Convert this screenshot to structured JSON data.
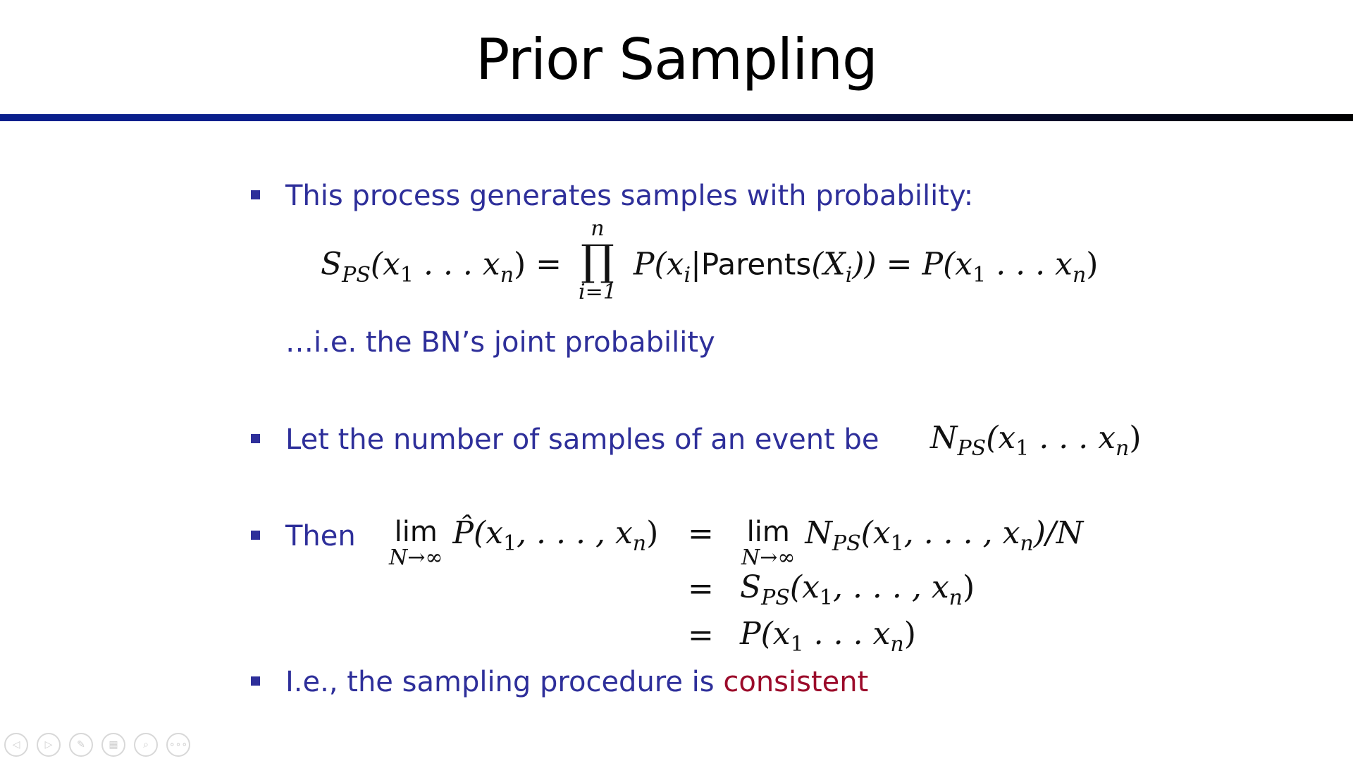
{
  "slide": {
    "title": "Prior Sampling",
    "bullets": [
      {
        "text": "This process generates samples with probability:"
      },
      {
        "text": "…i.e. the BN’s joint probability"
      },
      {
        "text": "Let the number of samples of an event be"
      },
      {
        "text": "Then"
      },
      {
        "text_before": "I.e., the sampling procedure is ",
        "text_highlight": "consistent"
      }
    ],
    "math": {
      "eq1_lhs": "S",
      "eq1_lhs_sub": "PS",
      "eq1_args": "(x",
      "eq1_sub1": "1",
      "eq1_dots": " . . . x",
      "eq1_subn": "n",
      "eq1_close": ") = ",
      "prod_top": "n",
      "prod_symbol": "∏",
      "prod_bottom": "i=1",
      "eq1_body1": "P(x",
      "eq1_body_sub_i": "i",
      "eq1_body_bar": "|",
      "eq1_parents": "Parents",
      "eq1_body2": "(X",
      "eq1_body_sub_i2": "i",
      "eq1_body3": ")) = P(x",
      "eq1_rhs_sub1": "1",
      "eq1_rhs_dots": " . . . x",
      "eq1_rhs_subn": "n",
      "eq1_rhs_close": ")",
      "nps_N": "N",
      "nps_sub": "PS",
      "nps_args": "(x",
      "nps_sub1": "1",
      "nps_dots": " . . . x",
      "nps_subn": "n",
      "nps_close": ")",
      "lim_word": "lim",
      "lim_under": "N→∞",
      "phat": "P̂(x",
      "phat_sub1": "1",
      "phat_mid": ", . . . , x",
      "phat_subn": "n",
      "phat_close": ")",
      "eq_sign": "=",
      "r1_N": "N",
      "r1_sub": "PS",
      "r1_args": "(x",
      "r1_sub1": "1",
      "r1_mid": ", . . . , x",
      "r1_subn": "n",
      "r1_close": ")/N",
      "r2_S": "S",
      "r2_sub": "PS",
      "r2_args": "(x",
      "r2_sub1": "1",
      "r2_mid": ", . . . , x",
      "r2_subn": "n",
      "r2_close": ")",
      "r3_P": "P(x",
      "r3_sub1": "1",
      "r3_mid": " . . . x",
      "r3_subn": "n",
      "r3_close": ")"
    }
  },
  "controls": [
    {
      "name": "previous-icon",
      "glyph": "◁"
    },
    {
      "name": "next-icon",
      "glyph": "▷"
    },
    {
      "name": "pen-icon",
      "glyph": "✎"
    },
    {
      "name": "slides-icon",
      "glyph": "▦"
    },
    {
      "name": "zoom-icon",
      "glyph": "⌕"
    },
    {
      "name": "more-icon",
      "glyph": "∘∘∘"
    }
  ]
}
